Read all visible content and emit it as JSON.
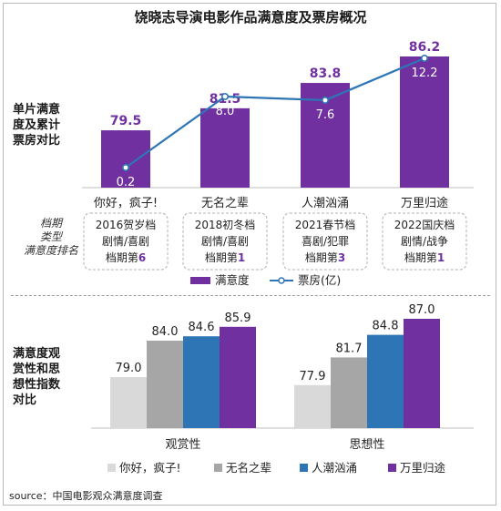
{
  "title": "饶晓志导演电影作品满意度及票房概况",
  "section1_label": [
    "单片满意",
    "度及累计",
    "票房对比"
  ],
  "section2_label": [
    "满意度观",
    "赏性和思",
    "想性指数",
    "对比"
  ],
  "side_label": [
    "档期",
    "类型",
    "满意度排名"
  ],
  "source": "source：中国电影观众满意度调查",
  "chart_data": [
    {
      "type": "bar",
      "categories": [
        "你好，疯子!",
        "无名之辈",
        "人潮汹涌",
        "万里归途"
      ],
      "series": [
        {
          "name": "满意度",
          "type": "bar",
          "values": [
            79.5,
            81.5,
            83.8,
            86.2
          ],
          "color": "#7030a0"
        },
        {
          "name": "票房(亿)",
          "type": "line",
          "values": [
            0.2,
            8.0,
            7.6,
            12.2
          ],
          "color": "#2e75b6"
        }
      ],
      "bar_labels": [
        "79.5",
        "81.5",
        "83.8",
        "86.2"
      ],
      "line_labels": [
        "0.2",
        "8.0",
        "7.6",
        "12.2"
      ],
      "info_boxes": [
        {
          "line1": "2016贺岁档",
          "line2": "剧情/喜剧",
          "line3_prefix": "档期第",
          "rank": "6"
        },
        {
          "line1": "2018初冬档",
          "line2": "剧情/喜剧",
          "line3_prefix": "档期第",
          "rank": "1"
        },
        {
          "line1": "2021春节档",
          "line2": "喜剧/犯罪",
          "line3_prefix": "档期第",
          "rank": "3"
        },
        {
          "line1": "2022国庆档",
          "line2": "剧情/战争",
          "line3_prefix": "档期第",
          "rank": "1"
        }
      ],
      "legend": [
        "满意度",
        "票房(亿)"
      ]
    },
    {
      "type": "bar",
      "categories": [
        "观赏性",
        "思想性"
      ],
      "series": [
        {
          "name": "你好，疯子!",
          "values": [
            79.0,
            77.9
          ],
          "color": "#d9d9d9"
        },
        {
          "name": "无名之辈",
          "values": [
            84.0,
            81.7
          ],
          "color": "#a6a6a6"
        },
        {
          "name": "人潮汹涌",
          "values": [
            84.6,
            84.8
          ],
          "color": "#2e75b6"
        },
        {
          "name": "万里归途",
          "values": [
            85.9,
            87.0
          ],
          "color": "#7030a0"
        }
      ],
      "value_labels": [
        [
          "79.0",
          "77.9"
        ],
        [
          "84.0",
          "81.7"
        ],
        [
          "84.6",
          "84.8"
        ],
        [
          "85.9",
          "87.0"
        ]
      ],
      "legend": [
        "你好，疯子!",
        "无名之辈",
        "人潮汹涌",
        "万里归途"
      ]
    }
  ]
}
